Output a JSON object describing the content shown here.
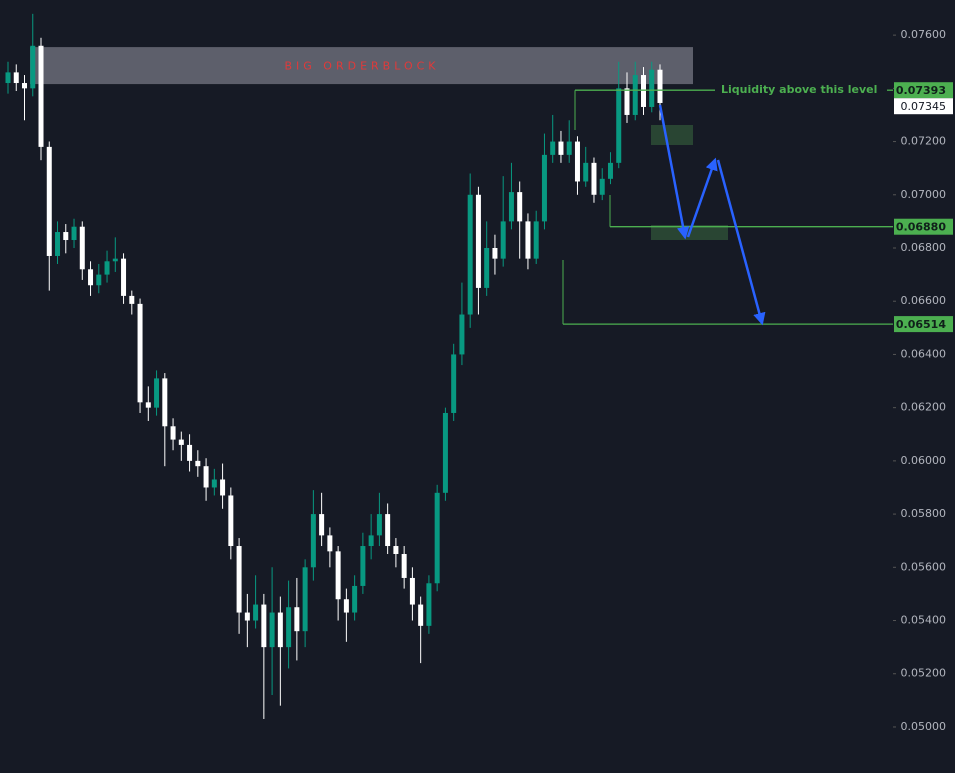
{
  "chart_data": {
    "type": "candlestick",
    "open": [
      0.0742,
      0.0746,
      0.0742,
      0.074,
      0.0756,
      0.0718,
      0.0677,
      0.0686,
      0.0683,
      0.0688,
      0.0672,
      0.0666,
      0.067,
      0.0675,
      0.0676,
      0.0662,
      0.0659,
      0.0622,
      0.062,
      0.0631,
      0.0613,
      0.0608,
      0.0606,
      0.06,
      0.0598,
      0.059,
      0.0593,
      0.0587,
      0.0568,
      0.0543,
      0.054,
      0.0546,
      0.053,
      0.0543,
      0.053,
      0.0545,
      0.0536,
      0.056,
      0.058,
      0.0572,
      0.0566,
      0.0548,
      0.0543,
      0.0553,
      0.0568,
      0.0572,
      0.058,
      0.0568,
      0.0565,
      0.0556,
      0.0546,
      0.0538,
      0.0554,
      0.0588,
      0.0618,
      0.064,
      0.0655,
      0.07,
      0.0665,
      0.068,
      0.0676,
      0.069,
      0.0701,
      0.069,
      0.0676,
      0.069,
      0.0715,
      0.072,
      0.0715,
      0.072,
      0.0705,
      0.0712,
      0.07,
      0.0706,
      0.0712,
      0.074,
      0.073,
      0.0745,
      0.0733,
      0.0747
    ],
    "high": [
      0.075,
      0.0749,
      0.0745,
      0.0768,
      0.0759,
      0.072,
      0.069,
      0.0689,
      0.0691,
      0.069,
      0.0675,
      0.0674,
      0.0679,
      0.0684,
      0.0678,
      0.0664,
      0.0661,
      0.0628,
      0.0634,
      0.0633,
      0.0616,
      0.0611,
      0.061,
      0.0604,
      0.0601,
      0.0597,
      0.0599,
      0.059,
      0.0571,
      0.055,
      0.0557,
      0.055,
      0.056,
      0.0549,
      0.0555,
      0.0556,
      0.0563,
      0.0589,
      0.0588,
      0.0575,
      0.0568,
      0.0552,
      0.0557,
      0.0573,
      0.058,
      0.0588,
      0.0584,
      0.0571,
      0.0568,
      0.056,
      0.0549,
      0.0557,
      0.0591,
      0.062,
      0.0644,
      0.0667,
      0.0708,
      0.0703,
      0.069,
      0.0685,
      0.0707,
      0.0712,
      0.0705,
      0.0693,
      0.0694,
      0.0723,
      0.073,
      0.0724,
      0.0728,
      0.0722,
      0.0718,
      0.0714,
      0.071,
      0.0716,
      0.075,
      0.0746,
      0.075,
      0.0748,
      0.075,
      0.0749
    ],
    "low": [
      0.0738,
      0.0739,
      0.0728,
      0.0737,
      0.0713,
      0.0664,
      0.0674,
      0.0678,
      0.068,
      0.0668,
      0.0662,
      0.0663,
      0.0667,
      0.0671,
      0.0659,
      0.0655,
      0.0618,
      0.0615,
      0.0617,
      0.0598,
      0.0604,
      0.06,
      0.0596,
      0.0594,
      0.0585,
      0.0587,
      0.0582,
      0.0563,
      0.0535,
      0.053,
      0.0537,
      0.0503,
      0.0512,
      0.0508,
      0.0522,
      0.0525,
      0.053,
      0.0555,
      0.0568,
      0.056,
      0.054,
      0.0532,
      0.054,
      0.055,
      0.0563,
      0.0568,
      0.0565,
      0.056,
      0.0552,
      0.054,
      0.0524,
      0.0535,
      0.0551,
      0.0585,
      0.0615,
      0.0636,
      0.065,
      0.0655,
      0.0662,
      0.067,
      0.0673,
      0.0687,
      0.0676,
      0.0672,
      0.0674,
      0.0687,
      0.0712,
      0.0712,
      0.0712,
      0.07,
      0.0703,
      0.0697,
      0.0698,
      0.0704,
      0.071,
      0.0727,
      0.0728,
      0.073,
      0.0731,
      0.0728
    ],
    "close": [
      0.0746,
      0.0742,
      0.074,
      0.0756,
      0.0718,
      0.0677,
      0.0686,
      0.0683,
      0.0688,
      0.0672,
      0.0666,
      0.067,
      0.0675,
      0.0676,
      0.0662,
      0.0659,
      0.0622,
      0.062,
      0.0631,
      0.0613,
      0.0608,
      0.0606,
      0.06,
      0.0598,
      0.059,
      0.0593,
      0.0587,
      0.0568,
      0.0543,
      0.054,
      0.0546,
      0.053,
      0.0543,
      0.053,
      0.0545,
      0.0536,
      0.056,
      0.058,
      0.0572,
      0.0566,
      0.0548,
      0.0543,
      0.0553,
      0.0568,
      0.0572,
      0.058,
      0.0568,
      0.0565,
      0.0556,
      0.0546,
      0.0538,
      0.0554,
      0.0588,
      0.0618,
      0.064,
      0.0655,
      0.07,
      0.0665,
      0.068,
      0.0676,
      0.069,
      0.0701,
      0.069,
      0.0676,
      0.069,
      0.0715,
      0.072,
      0.0715,
      0.072,
      0.0705,
      0.0712,
      0.07,
      0.0706,
      0.0712,
      0.074,
      0.073,
      0.0745,
      0.0733,
      0.0747,
      0.07345
    ],
    "up_color": "#089981",
    "down_color": "#ffffff",
    "ylim": [
      0.04827,
      0.07732
    ],
    "yticks": [
      {
        "value": 0.076,
        "label": "0.07600"
      },
      {
        "value": 0.074,
        "label": "0.07400"
      },
      {
        "value": 0.072,
        "label": "0.07200"
      },
      {
        "value": 0.07,
        "label": "0.07000"
      },
      {
        "value": 0.068,
        "label": "0.06800"
      },
      {
        "value": 0.066,
        "label": "0.06600"
      },
      {
        "value": 0.064,
        "label": "0.06400"
      },
      {
        "value": 0.062,
        "label": "0.06200"
      },
      {
        "value": 0.06,
        "label": "0.06000"
      },
      {
        "value": 0.058,
        "label": "0.05800"
      },
      {
        "value": 0.056,
        "label": "0.05600"
      },
      {
        "value": 0.054,
        "label": "0.05400"
      },
      {
        "value": 0.052,
        "label": "0.05200"
      },
      {
        "value": 0.05,
        "label": "0.05000"
      }
    ],
    "zone": {
      "label": "BIG ORDERBLOCK",
      "top": 0.07555,
      "bottom": 0.07416
    },
    "levels": [
      {
        "value": 0.07393,
        "label": "0.07393",
        "note": "Liquidity above this level"
      },
      {
        "value": 0.0688,
        "label": "0.06880"
      },
      {
        "value": 0.06514,
        "label": "0.06514"
      }
    ],
    "last_price": {
      "value": 0.07345,
      "label": "0.07345"
    }
  }
}
